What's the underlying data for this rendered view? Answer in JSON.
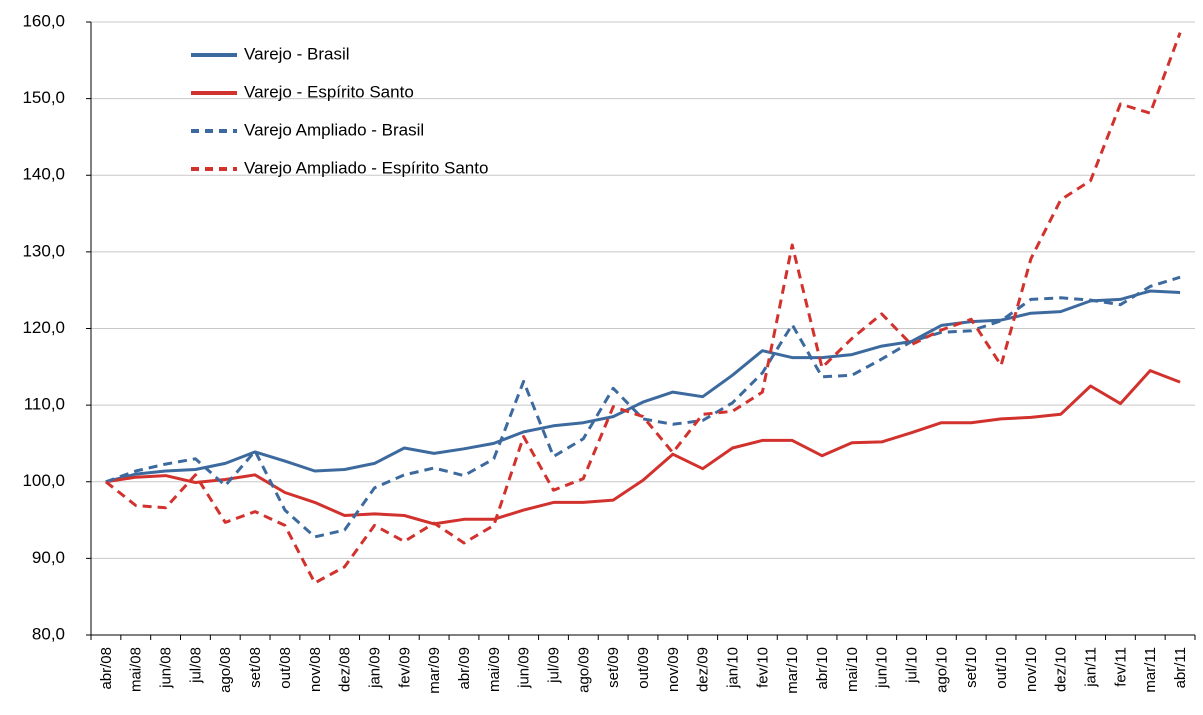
{
  "chart_data": {
    "type": "line",
    "categories": [
      "abr/08",
      "mai/08",
      "jun/08",
      "jul/08",
      "ago/08",
      "set/08",
      "out/08",
      "nov/08",
      "dez/08",
      "jan/09",
      "fev/09",
      "mar/09",
      "abr/09",
      "mai/09",
      "jun/09",
      "jul/09",
      "ago/09",
      "set/09",
      "out/09",
      "nov/09",
      "dez/09",
      "jan/10",
      "fev/10",
      "mar/10",
      "abr/10",
      "mai/10",
      "jun/10",
      "jul/10",
      "ago/10",
      "set/10",
      "out/10",
      "nov/10",
      "dez/10",
      "jan/11",
      "fev/11",
      "mar/11",
      "abr/11"
    ],
    "series": [
      {
        "name": "Varejo - Brasil",
        "color": "#3d6a9e",
        "linestyle": "solid",
        "values": [
          100,
          101.0,
          101.4,
          101.6,
          102.4,
          103.9,
          102.7,
          101.4,
          101.6,
          102.4,
          104.4,
          103.7,
          104.3,
          105.0,
          106.5,
          107.3,
          107.7,
          108.5,
          110.4,
          111.7,
          111.1,
          113.9,
          117.1,
          116.2,
          116.2,
          116.6,
          117.7,
          118.3,
          120.4,
          120.9,
          121.1,
          122.0,
          122.2,
          123.6,
          123.8,
          124.9,
          124.7
        ]
      },
      {
        "name": "Varejo - Espírito Santo",
        "color": "#d2322d",
        "linestyle": "solid",
        "values": [
          100,
          100.6,
          100.8,
          99.9,
          100.3,
          100.9,
          98.6,
          97.3,
          95.6,
          95.8,
          95.6,
          94.5,
          95.1,
          95.1,
          96.3,
          97.3,
          97.3,
          97.6,
          100.2,
          103.6,
          101.7,
          104.4,
          105.4,
          105.4,
          103.4,
          105.1,
          105.2,
          106.4,
          107.7,
          107.7,
          108.2,
          108.4,
          108.8,
          112.5,
          110.2,
          114.5,
          113.0
        ]
      },
      {
        "name": "Varejo Ampliado - Brasil",
        "color": "#3d6a9e",
        "linestyle": "dashed",
        "values": [
          100,
          101.4,
          102.3,
          103.0,
          99.5,
          104.0,
          96.3,
          92.8,
          93.7,
          99.2,
          100.9,
          101.8,
          100.8,
          103.0,
          113.1,
          103.3,
          105.6,
          112.2,
          108.2,
          107.5,
          108.0,
          110.3,
          114.2,
          120.5,
          113.7,
          113.9,
          116.0,
          118.3,
          119.5,
          119.7,
          121.0,
          123.8,
          124.0,
          123.7,
          123.1,
          125.5,
          126.7
        ]
      },
      {
        "name": "Varejo Ampliado - Espírito Santo",
        "color": "#d2322d",
        "linestyle": "dashed",
        "values": [
          100,
          96.9,
          96.6,
          100.9,
          94.7,
          96.1,
          94.3,
          86.8,
          88.9,
          94.3,
          92.2,
          94.6,
          92.0,
          94.3,
          105.9,
          98.9,
          100.4,
          109.8,
          108.5,
          103.8,
          108.8,
          109.2,
          111.7,
          130.9,
          114.9,
          118.7,
          121.9,
          117.9,
          119.8,
          121.2,
          115.2,
          129.1,
          136.8,
          139.3,
          149.3,
          148.1,
          158.6
        ]
      }
    ],
    "ylim": [
      80,
      160
    ],
    "yticks": [
      {
        "value": 80,
        "label": "80,0"
      },
      {
        "value": 90,
        "label": "90,0"
      },
      {
        "value": 100,
        "label": "100,0"
      },
      {
        "value": 110,
        "label": "110,0"
      },
      {
        "value": 120,
        "label": "120,0"
      },
      {
        "value": 130,
        "label": "130,0"
      },
      {
        "value": 140,
        "label": "140,0"
      },
      {
        "value": 150,
        "label": "150,0"
      },
      {
        "value": 160,
        "label": "160,0"
      }
    ],
    "grid": true,
    "legend": "upper left"
  }
}
